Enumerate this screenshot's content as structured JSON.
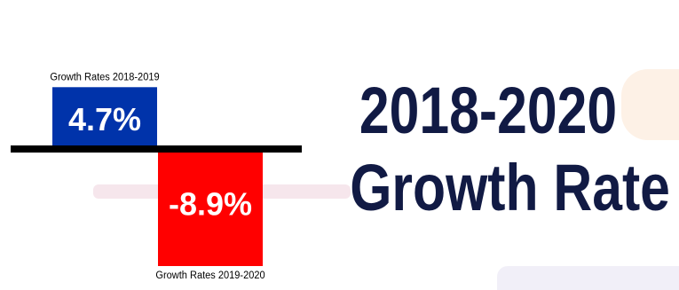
{
  "chart_data": {
    "type": "bar",
    "categories": [
      "Growth Rates 2018-2019",
      "Growth Rates 2019-2020"
    ],
    "values": [
      4.7,
      -8.9
    ],
    "value_labels": [
      "4.7%",
      "-8.9%"
    ],
    "colors": [
      "#0033aa",
      "#ff0000"
    ],
    "baseline_color": "#000000",
    "ylim": [
      -8.9,
      4.7
    ],
    "grid": false,
    "legend": "none"
  },
  "headline": {
    "line1": "2018-2020",
    "line2": "Growth Rate"
  }
}
